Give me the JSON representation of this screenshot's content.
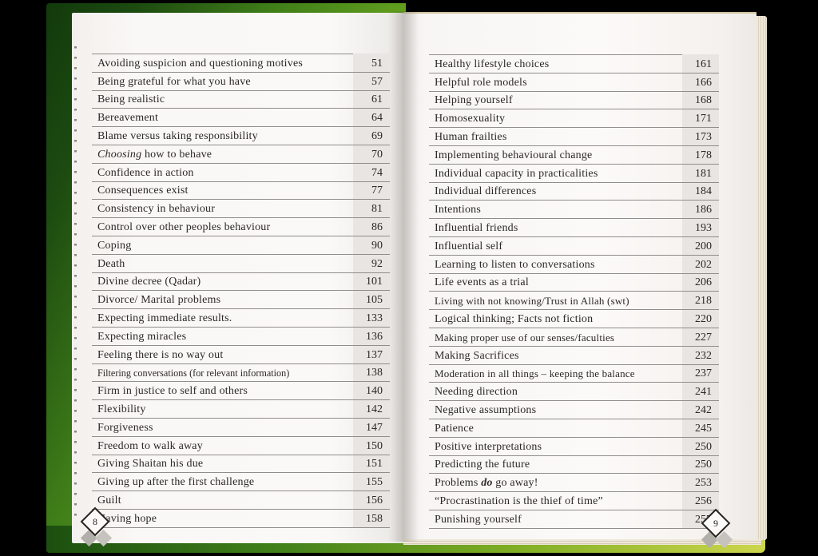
{
  "book": {
    "left_page": {
      "page_marker": "8",
      "entries": [
        {
          "title": "Avoiding suspicion and questioning motives",
          "page": "51"
        },
        {
          "title": "Being grateful for what you have",
          "page": "57"
        },
        {
          "title": "Being realistic",
          "page": "61"
        },
        {
          "title": "Bereavement",
          "page": "64"
        },
        {
          "title": "Blame versus taking responsibility",
          "page": "69"
        },
        {
          "title": "Choosing how to behave",
          "page": "70",
          "seg": [
            [
              "Choosing",
              "i"
            ],
            [
              " how to behave",
              ""
            ]
          ]
        },
        {
          "title": "Confidence in action",
          "page": "74"
        },
        {
          "title": "Consequences exist",
          "page": "77"
        },
        {
          "title": "Consistency in behaviour",
          "page": "81"
        },
        {
          "title": "Control over other peoples behaviour",
          "page": "86"
        },
        {
          "title": "Coping",
          "page": "90"
        },
        {
          "title": "Death",
          "page": "92"
        },
        {
          "title": "Divine decree (Qadar)",
          "page": "101"
        },
        {
          "title": "Divorce/ Marital problems",
          "page": "105"
        },
        {
          "title": "Expecting immediate results.",
          "page": "133"
        },
        {
          "title": "Expecting miracles",
          "page": "136"
        },
        {
          "title": "Feeling there is no way out",
          "page": "137"
        },
        {
          "title": "Filtering conversations (for relevant information)",
          "page": "138",
          "size": "xs"
        },
        {
          "title": "Firm in justice to self and others",
          "page": "140"
        },
        {
          "title": "Flexibility",
          "page": "142"
        },
        {
          "title": "Forgiveness",
          "page": "147"
        },
        {
          "title": "Freedom to walk away",
          "page": "150"
        },
        {
          "title": "Giving Shaitan his due",
          "page": "151"
        },
        {
          "title": "Giving up after the first challenge",
          "page": "155"
        },
        {
          "title": "Guilt",
          "page": "156"
        },
        {
          "title": "Having hope",
          "page": "158"
        }
      ]
    },
    "right_page": {
      "page_marker": "9",
      "entries": [
        {
          "title": "Healthy lifestyle choices",
          "page": "161"
        },
        {
          "title": "Helpful role models",
          "page": "166"
        },
        {
          "title": "Helping yourself",
          "page": "168"
        },
        {
          "title": "Homosexuality",
          "page": "171"
        },
        {
          "title": "Human frailties",
          "page": "173"
        },
        {
          "title": "Implementing behavioural change",
          "page": "178"
        },
        {
          "title": "Individual capacity in practicalities",
          "page": "181"
        },
        {
          "title": "Individual differences",
          "page": "184"
        },
        {
          "title": "Intentions",
          "page": "186"
        },
        {
          "title": "Influential friends",
          "page": "193"
        },
        {
          "title": "Influential self",
          "page": "200"
        },
        {
          "title": "Learning to listen to conversations",
          "page": "202"
        },
        {
          "title": "Life events as a trial",
          "page": "206"
        },
        {
          "title": "Living with not knowing/Trust in Allah (swt)",
          "page": "218",
          "size": "s"
        },
        {
          "title": "Logical thinking; Facts not fiction",
          "page": "220"
        },
        {
          "title": "Making proper use of our senses/faculties",
          "page": "227",
          "size": "s"
        },
        {
          "title": "Making Sacrifices",
          "page": "232"
        },
        {
          "title": "Moderation in all things – keeping the balance",
          "page": "237",
          "size": "s"
        },
        {
          "title": "Needing direction",
          "page": "241"
        },
        {
          "title": "Negative assumptions",
          "page": "242"
        },
        {
          "title": "Patience",
          "page": "245"
        },
        {
          "title": "Positive interpretations",
          "page": "250"
        },
        {
          "title": "Predicting the future",
          "page": "250"
        },
        {
          "title": "Problems do go away!",
          "page": "253",
          "seg": [
            [
              "Problems ",
              ""
            ],
            [
              "do",
              "bi"
            ],
            [
              " go away!",
              ""
            ]
          ]
        },
        {
          "title": "“Procrastination is the thief of time”",
          "page": "256"
        },
        {
          "title": "Punishing yourself",
          "page": "257"
        }
      ]
    }
  },
  "colors": {
    "cover_green_dark": "#1c4a10",
    "cover_green_mid": "#63a01f",
    "cover_yellow": "#d6d44e",
    "page_white": "#f8f6f4",
    "rule_gray": "#908d8a",
    "text_ink": "#2b2825",
    "number_strip": "#e8e5e2",
    "page_edge_cream": "#ece4d2"
  }
}
